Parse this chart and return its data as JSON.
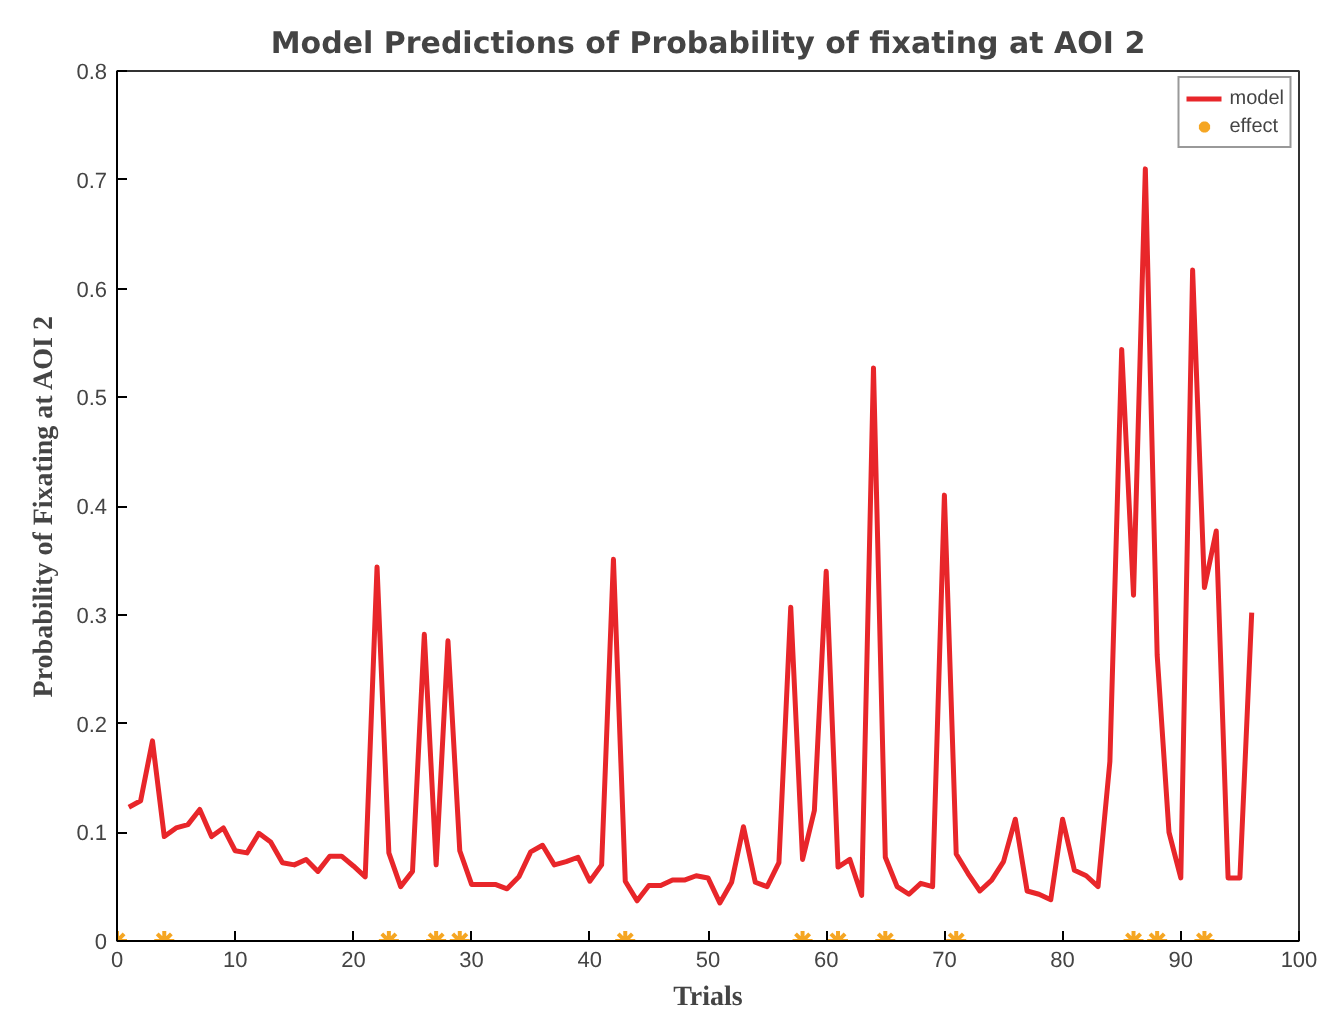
{
  "chart_data": {
    "type": "line",
    "title": "Model Predictions of Probability of fixating at AOI 2",
    "xlabel": "Trials",
    "ylabel": "Probability of Fixating at AOI 2",
    "xlim": [
      0,
      100
    ],
    "ylim": [
      0,
      0.8
    ],
    "xticks": [
      0,
      10,
      20,
      30,
      40,
      50,
      60,
      70,
      80,
      90,
      100
    ],
    "yticks": [
      0,
      0.1,
      0.2,
      0.3,
      0.4,
      0.5,
      0.6,
      0.7,
      0.8
    ],
    "grid": false,
    "legend": "top right",
    "series": [
      {
        "name": "model",
        "color": "#e8262a",
        "line_style": "solid",
        "marker": "none",
        "x": [
          1,
          2,
          3,
          4,
          5,
          6,
          7,
          8,
          9,
          10,
          11,
          12,
          13,
          14,
          15,
          16,
          17,
          18,
          19,
          20,
          21,
          22,
          23,
          24,
          25,
          26,
          27,
          28,
          29,
          30,
          31,
          32,
          33,
          34,
          35,
          36,
          37,
          38,
          39,
          40,
          41,
          42,
          43,
          44,
          45,
          46,
          47,
          48,
          49,
          50,
          51,
          52,
          53,
          54,
          55,
          56,
          57,
          58,
          59,
          60,
          61,
          62,
          63,
          64,
          65,
          66,
          67,
          68,
          69,
          70,
          71,
          72,
          73,
          74,
          75,
          76,
          77,
          78,
          79,
          80,
          81,
          82,
          83,
          84,
          85,
          86,
          87,
          88,
          89,
          90,
          91,
          92,
          93,
          94,
          95,
          96
        ],
        "values": [
          0.123,
          0.129,
          0.184,
          0.096,
          0.104,
          0.107,
          0.121,
          0.096,
          0.104,
          0.083,
          0.081,
          0.099,
          0.091,
          0.072,
          0.07,
          0.075,
          0.064,
          0.078,
          0.078,
          0.069,
          0.059,
          0.344,
          0.081,
          0.05,
          0.064,
          0.282,
          0.07,
          0.276,
          0.083,
          0.052,
          0.052,
          0.052,
          0.048,
          0.059,
          0.082,
          0.088,
          0.07,
          0.073,
          0.077,
          0.055,
          0.07,
          0.351,
          0.055,
          0.037,
          0.051,
          0.051,
          0.056,
          0.056,
          0.06,
          0.058,
          0.035,
          0.054,
          0.105,
          0.054,
          0.05,
          0.072,
          0.307,
          0.075,
          0.12,
          0.34,
          0.068,
          0.075,
          0.042,
          0.527,
          0.077,
          0.05,
          0.043,
          0.053,
          0.05,
          0.41,
          0.08,
          0.062,
          0.046,
          0.056,
          0.073,
          0.112,
          0.046,
          0.043,
          0.038,
          0.112,
          0.065,
          0.06,
          0.05,
          0.165,
          0.544,
          0.318,
          0.71,
          0.263,
          0.1,
          0.058,
          0.617,
          0.325,
          0.377,
          0.058,
          0.058,
          0.302
        ]
      },
      {
        "name": "effect",
        "type": "scatter",
        "color": "#f5a623",
        "marker": "cross",
        "x": [
          0,
          4,
          23,
          27,
          29,
          43,
          58,
          61,
          65,
          71,
          86,
          88,
          92
        ],
        "values": [
          0,
          0,
          0,
          0,
          0,
          0,
          0,
          0,
          0,
          0,
          0,
          0,
          0
        ]
      }
    ]
  }
}
